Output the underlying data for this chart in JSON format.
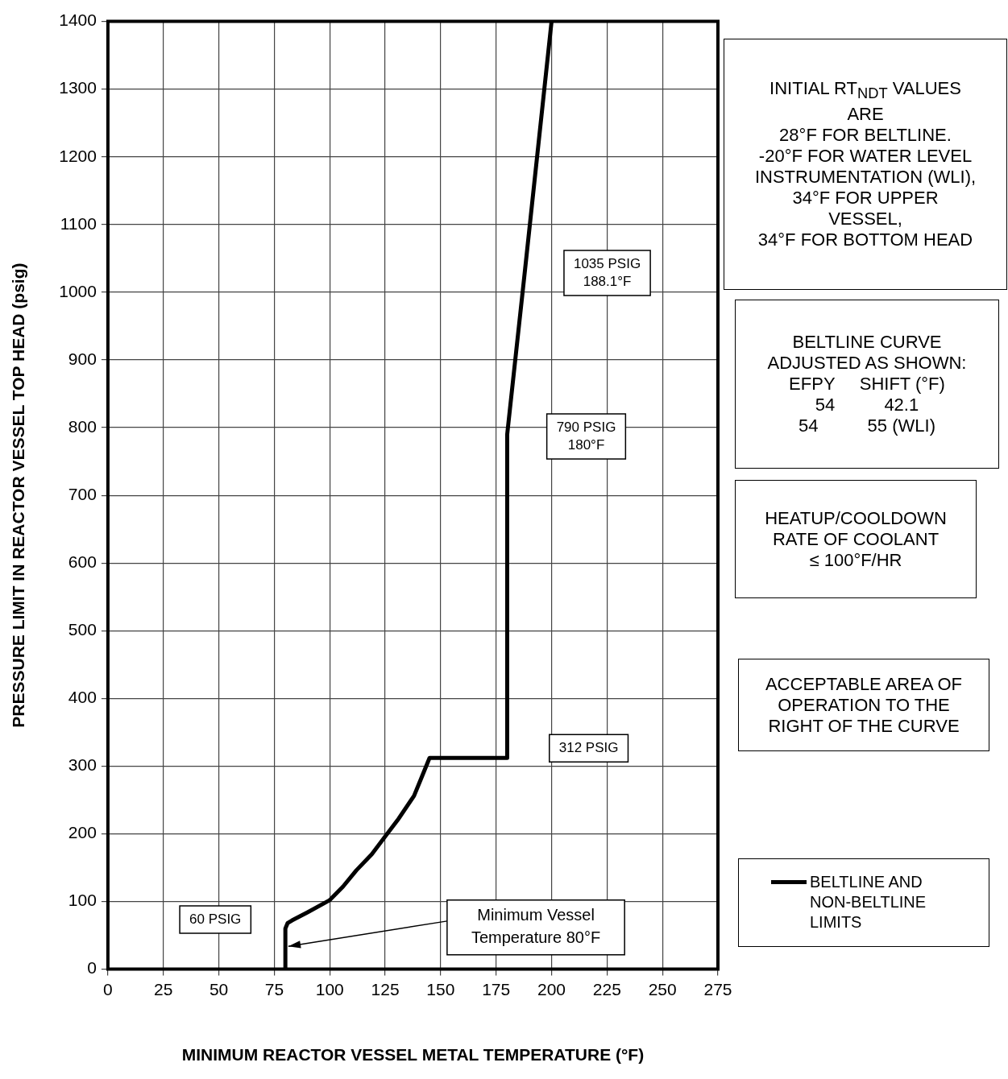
{
  "chart_data": {
    "type": "line",
    "xlabel": "MINIMUM REACTOR VESSEL METAL TEMPERATURE (°F)",
    "ylabel": "PRESSURE LIMIT IN REACTOR VESSEL TOP HEAD (psig)",
    "xlim": [
      0,
      275
    ],
    "xticks": [
      0,
      25,
      50,
      75,
      100,
      125,
      150,
      175,
      200,
      225,
      250,
      275
    ],
    "ylim": [
      0,
      1400
    ],
    "yticks": [
      0,
      100,
      200,
      300,
      400,
      500,
      600,
      700,
      800,
      900,
      1000,
      1100,
      1200,
      1300,
      1400
    ],
    "grid": true,
    "legend": "right",
    "marker": "none",
    "line_style": "solid",
    "series": [
      {
        "name": "BELTLINE  AND NON-BELTLINE LIMITS",
        "color": "#000000",
        "x": [
          80,
          80,
          81,
          83,
          90,
          100,
          106,
          112,
          119,
          125,
          131,
          138,
          141,
          145,
          180,
          180,
          188.1,
          200
        ],
        "values": [
          0,
          60,
          68,
          72,
          84,
          102,
          122,
          146,
          170,
          196,
          222,
          256,
          280,
          312,
          312,
          790,
          1035,
          1400
        ]
      }
    ],
    "annotations": [
      "INITIAL RT$_{NDT}$ VALUES\nARE\n28°F FOR BELTLINE.\n-20°F FOR WATER LEVEL INSTRUMENTATION (WLI),\n34°F FOR UPPER\nVESSEL,\n34°F FOR BOTTOM HEAD",
      "BELTLINE CURVE\nADJUSTED AS SHOWN:\nEFPY     SHIFT (°F)\n54          42.1\n54          55 (WLI)",
      "HEATUP/COOLDOWN\nRATE OF COOLANT\n≤ 100°F/HR",
      "ACCEPTABLE AREA OF\nOPERATION TO THE\nRIGHT OF THE CURVE",
      "1035 PSIG\n188.1°F",
      "790 PSIG\n180°F",
      "312 PSIG",
      "60 PSIG",
      "Minimum Vessel\nTemperature 80°F"
    ]
  }
}
